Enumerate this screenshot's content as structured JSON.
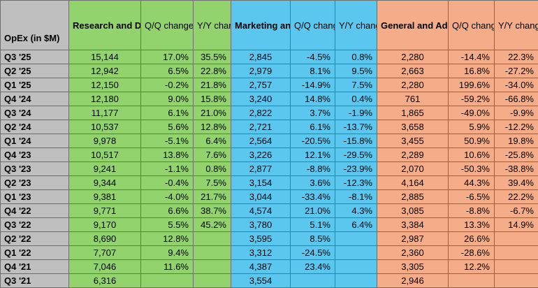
{
  "header": {
    "row_label": "OpEx (in $M)",
    "groups": [
      {
        "title": "Research and Development",
        "qq": "Q/Q change",
        "yy": "Y/Y change"
      },
      {
        "title": "Marketing and Sales",
        "qq": "Q/Q change",
        "yy": "Y/Y change"
      },
      {
        "title": "General and Administrative",
        "qq": "Q/Q change",
        "yy": "Y/Y change"
      }
    ]
  },
  "colors": {
    "label_column": "#bfbfbf",
    "research_development": "#92d36e",
    "marketing_sales": "#5bc7ef",
    "general_admin": "#f4ad88"
  },
  "rows": [
    {
      "q": "Q3 '25",
      "rd": "15,144",
      "rd_qq": "17.0%",
      "rd_yy": "35.5%",
      "ms": "2,845",
      "ms_qq": "-4.5%",
      "ms_yy": "0.8%",
      "ga": "2,280",
      "ga_qq": "-14.4%",
      "ga_yy": "22.3%"
    },
    {
      "q": "Q2 '25",
      "rd": "12,942",
      "rd_qq": "6.5%",
      "rd_yy": "22.8%",
      "ms": "2,979",
      "ms_qq": "8.1%",
      "ms_yy": "9.5%",
      "ga": "2,663",
      "ga_qq": "16.8%",
      "ga_yy": "-27.2%"
    },
    {
      "q": "Q1 '25",
      "rd": "12,150",
      "rd_qq": "-0.2%",
      "rd_yy": "21.8%",
      "ms": "2,757",
      "ms_qq": "-14.9%",
      "ms_yy": "7.5%",
      "ga": "2,280",
      "ga_qq": "199.6%",
      "ga_yy": "-34.0%"
    },
    {
      "q": "Q4 '24",
      "rd": "12,180",
      "rd_qq": "9.0%",
      "rd_yy": "15.8%",
      "ms": "3,240",
      "ms_qq": "14.8%",
      "ms_yy": "0.4%",
      "ga": "761",
      "ga_qq": "-59.2%",
      "ga_yy": "-66.8%"
    },
    {
      "q": "Q3 '24",
      "rd": "11,177",
      "rd_qq": "6.1%",
      "rd_yy": "21.0%",
      "ms": "2,822",
      "ms_qq": "3.7%",
      "ms_yy": "-1.9%",
      "ga": "1,865",
      "ga_qq": "-49.0%",
      "ga_yy": "-9.9%"
    },
    {
      "q": "Q2 '24",
      "rd": "10,537",
      "rd_qq": "5.6%",
      "rd_yy": "12.8%",
      "ms": "2,721",
      "ms_qq": "6.1%",
      "ms_yy": "-13.7%",
      "ga": "3,658",
      "ga_qq": "5.9%",
      "ga_yy": "-12.2%"
    },
    {
      "q": "Q1 '24",
      "rd": "9,978",
      "rd_qq": "-5.1%",
      "rd_yy": "6.4%",
      "ms": "2,564",
      "ms_qq": "-20.5%",
      "ms_yy": "-15.8%",
      "ga": "3,455",
      "ga_qq": "50.9%",
      "ga_yy": "19.8%"
    },
    {
      "q": "Q4 '23",
      "rd": "10,517",
      "rd_qq": "13.8%",
      "rd_yy": "7.6%",
      "ms": "3,226",
      "ms_qq": "12.1%",
      "ms_yy": "-29.5%",
      "ga": "2,289",
      "ga_qq": "10.6%",
      "ga_yy": "-25.8%"
    },
    {
      "q": "Q3 '23",
      "rd": "9,241",
      "rd_qq": "-1.1%",
      "rd_yy": "0.8%",
      "ms": "2,877",
      "ms_qq": "-8.8%",
      "ms_yy": "-23.9%",
      "ga": "2,070",
      "ga_qq": "-50.3%",
      "ga_yy": "-38.8%"
    },
    {
      "q": "Q2 '23",
      "rd": "9,344",
      "rd_qq": "-0.4%",
      "rd_yy": "7.5%",
      "ms": "3,154",
      "ms_qq": "3.6%",
      "ms_yy": "-12.3%",
      "ga": "4,164",
      "ga_qq": "44.3%",
      "ga_yy": "39.4%"
    },
    {
      "q": "Q1 '23",
      "rd": "9,381",
      "rd_qq": "-4.0%",
      "rd_yy": "21.7%",
      "ms": "3,044",
      "ms_qq": "-33.4%",
      "ms_yy": "-8.1%",
      "ga": "2,885",
      "ga_qq": "-6.5%",
      "ga_yy": "22.2%"
    },
    {
      "q": "Q4 '22",
      "rd": "9,771",
      "rd_qq": "6.6%",
      "rd_yy": "38.7%",
      "ms": "4,574",
      "ms_qq": "21.0%",
      "ms_yy": "4.3%",
      "ga": "3,085",
      "ga_qq": "-8.8%",
      "ga_yy": "-6.7%"
    },
    {
      "q": "Q3 '22",
      "rd": "9,170",
      "rd_qq": "5.5%",
      "rd_yy": "45.2%",
      "ms": "3,780",
      "ms_qq": "5.1%",
      "ms_yy": "6.4%",
      "ga": "3,384",
      "ga_qq": "13.3%",
      "ga_yy": "14.9%"
    },
    {
      "q": "Q2 '22",
      "rd": "8,690",
      "rd_qq": "12.8%",
      "rd_yy": "",
      "ms": "3,595",
      "ms_qq": "8.5%",
      "ms_yy": "",
      "ga": "2,987",
      "ga_qq": "26.6%",
      "ga_yy": ""
    },
    {
      "q": "Q1 '22",
      "rd": "7,707",
      "rd_qq": "9.4%",
      "rd_yy": "",
      "ms": "3,312",
      "ms_qq": "-24.5%",
      "ms_yy": "",
      "ga": "2,360",
      "ga_qq": "-28.6%",
      "ga_yy": ""
    },
    {
      "q": "Q4 '21",
      "rd": "7,046",
      "rd_qq": "11.6%",
      "rd_yy": "",
      "ms": "4,387",
      "ms_qq": "23.4%",
      "ms_yy": "",
      "ga": "3,305",
      "ga_qq": "12.2%",
      "ga_yy": ""
    },
    {
      "q": "Q3 '21",
      "rd": "6,316",
      "rd_qq": "",
      "rd_yy": "",
      "ms": "3,554",
      "ms_qq": "",
      "ms_yy": "",
      "ga": "2,946",
      "ga_qq": "",
      "ga_yy": ""
    }
  ]
}
